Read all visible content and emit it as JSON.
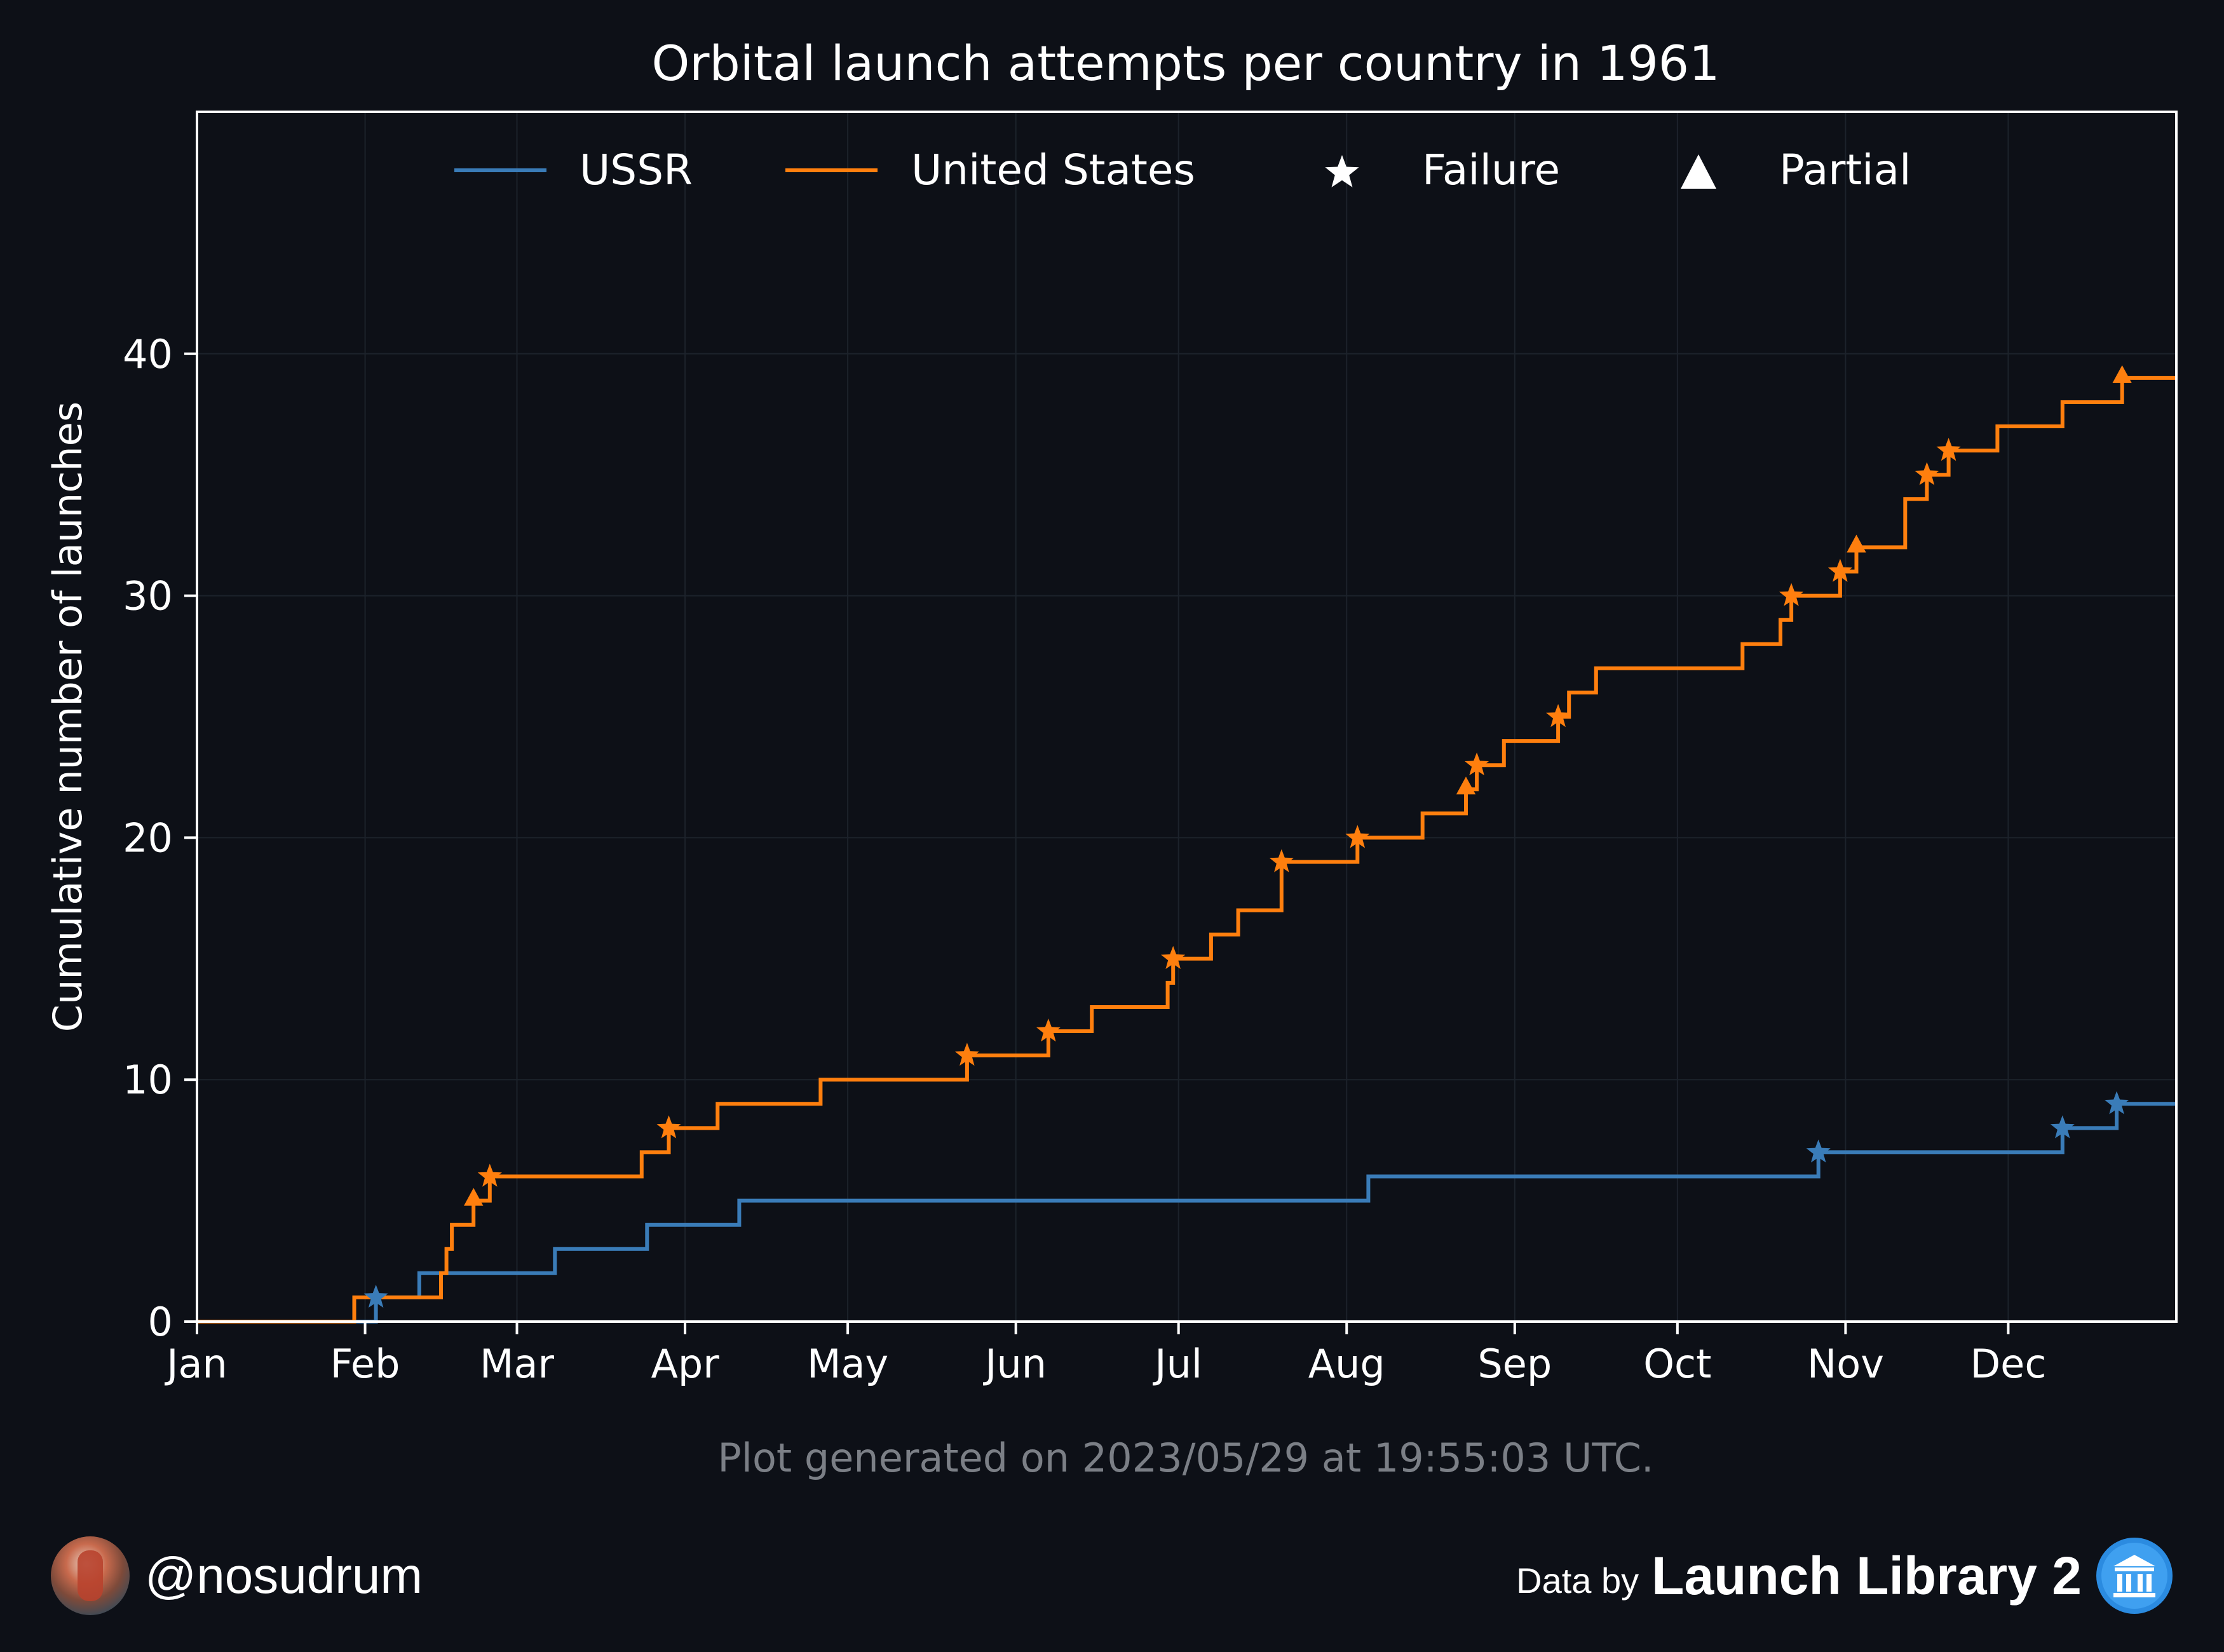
{
  "chart_data": {
    "type": "line",
    "step": true,
    "title": "Orbital launch attempts per country in 1961",
    "xlabel": "",
    "ylabel": "Cumulative number of launches",
    "x_unit": "day of year 1961",
    "xlim": [
      0,
      365
    ],
    "ylim": [
      0,
      50
    ],
    "x_ticks": [
      {
        "label": "Jan",
        "x": 0
      },
      {
        "label": "Feb",
        "x": 31
      },
      {
        "label": "Mar",
        "x": 59
      },
      {
        "label": "Apr",
        "x": 90
      },
      {
        "label": "May",
        "x": 120
      },
      {
        "label": "Jun",
        "x": 151
      },
      {
        "label": "Jul",
        "x": 181
      },
      {
        "label": "Aug",
        "x": 212
      },
      {
        "label": "Sep",
        "x": 243
      },
      {
        "label": "Oct",
        "x": 273
      },
      {
        "label": "Nov",
        "x": 304
      },
      {
        "label": "Dec",
        "x": 334
      }
    ],
    "y_ticks": [
      0,
      10,
      20,
      30,
      40
    ],
    "grid": true,
    "legend_position": "top",
    "legend": [
      {
        "label": "USSR",
        "kind": "line",
        "color": "#3a7cb8"
      },
      {
        "label": "United States",
        "kind": "line",
        "color": "#ff7f0e"
      },
      {
        "label": "Failure",
        "kind": "star-marker",
        "color": "#ffffff"
      },
      {
        "label": "Partial",
        "kind": "triangle-marker",
        "color": "#ffffff"
      }
    ],
    "series": [
      {
        "name": "USSR",
        "color": "#3a7cb8",
        "steps": [
          [
            33,
            1
          ],
          [
            41,
            2
          ],
          [
            66,
            3
          ],
          [
            83,
            4
          ],
          [
            100,
            5
          ],
          [
            216,
            6
          ],
          [
            299,
            7
          ],
          [
            344,
            8
          ],
          [
            354,
            9
          ]
        ],
        "failures": [
          [
            33,
            1
          ],
          [
            299,
            7
          ],
          [
            344,
            8
          ],
          [
            354,
            9
          ]
        ],
        "partials": []
      },
      {
        "name": "United States",
        "color": "#ff7f0e",
        "steps": [
          [
            29,
            1
          ],
          [
            45,
            2
          ],
          [
            46,
            3
          ],
          [
            47,
            4
          ],
          [
            51,
            5
          ],
          [
            54,
            6
          ],
          [
            82,
            7
          ],
          [
            87,
            8
          ],
          [
            96,
            9
          ],
          [
            115,
            10
          ],
          [
            142,
            11
          ],
          [
            157,
            12
          ],
          [
            165,
            13
          ],
          [
            179,
            14
          ],
          [
            180,
            15
          ],
          [
            187,
            16
          ],
          [
            192,
            17
          ],
          [
            200,
            19
          ],
          [
            214,
            20
          ],
          [
            226,
            21
          ],
          [
            234,
            22
          ],
          [
            236,
            23
          ],
          [
            241,
            24
          ],
          [
            251,
            25
          ],
          [
            253,
            26
          ],
          [
            258,
            27
          ],
          [
            285,
            28
          ],
          [
            292,
            29
          ],
          [
            294,
            30
          ],
          [
            303,
            31
          ],
          [
            306,
            32
          ],
          [
            315,
            34
          ],
          [
            319,
            35
          ],
          [
            323,
            36
          ],
          [
            332,
            37
          ],
          [
            344,
            38
          ],
          [
            355,
            39
          ]
        ],
        "failures": [
          [
            54,
            6
          ],
          [
            87,
            8
          ],
          [
            142,
            11
          ],
          [
            157,
            12
          ],
          [
            180,
            15
          ],
          [
            200,
            19
          ],
          [
            214,
            20
          ],
          [
            236,
            23
          ],
          [
            251,
            25
          ],
          [
            294,
            30
          ],
          [
            303,
            31
          ],
          [
            319,
            35
          ],
          [
            323,
            36
          ]
        ],
        "partials": [
          [
            51,
            5
          ],
          [
            234,
            22
          ],
          [
            306,
            32
          ],
          [
            355,
            39
          ]
        ]
      }
    ]
  },
  "footer": {
    "generated": "Plot generated on 2023/05/29 at 19:55:03 UTC.",
    "handle": "@nosudrum",
    "data_by": "Data by",
    "library": "Launch Library 2",
    "avatar_icon": "astronaut-avatar-icon",
    "library_icon": "library-building-icon"
  }
}
